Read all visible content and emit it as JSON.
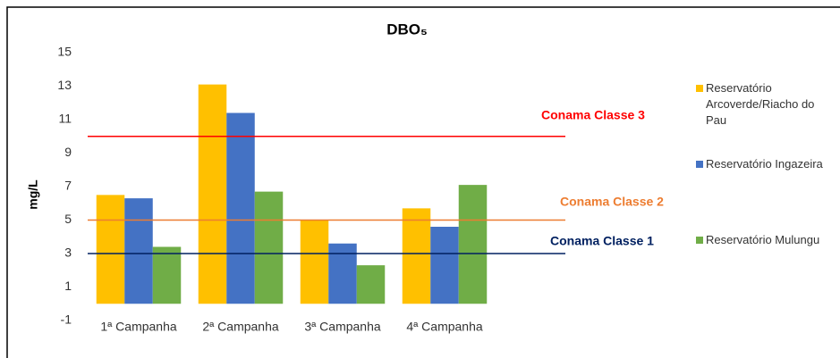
{
  "chart_data": {
    "type": "bar",
    "title": "DBO₅",
    "y_label": "mg/L",
    "categories": [
      "1ª Campanha",
      "2ª Campanha",
      "3ª Campanha",
      "4ª Campanha"
    ],
    "series": [
      {
        "name": "Reservatório Arcoverde/Riacho do Pau",
        "color": "#ffc000",
        "values": [
          6.5,
          13.1,
          5.0,
          5.7
        ]
      },
      {
        "name": "Reservatório Ingazeira",
        "color": "#4472c4",
        "values": [
          6.3,
          11.4,
          3.6,
          4.6
        ]
      },
      {
        "name": "Reservatório Mulungu",
        "color": "#70ad47",
        "values": [
          3.4,
          6.7,
          2.3,
          7.1
        ]
      }
    ],
    "reference_lines": [
      {
        "label": "Conama Classe 3",
        "value": 10,
        "color": "#ff0000"
      },
      {
        "label": "Conama Classe 2",
        "value": 5,
        "color": "#ed7d31"
      },
      {
        "label": "Conama Classe 1",
        "value": 3,
        "color": "#002060"
      }
    ],
    "ylim": [
      -1,
      15
    ],
    "yticks": [
      -1,
      1,
      3,
      5,
      7,
      9,
      11,
      13,
      15
    ],
    "legend": "right"
  }
}
